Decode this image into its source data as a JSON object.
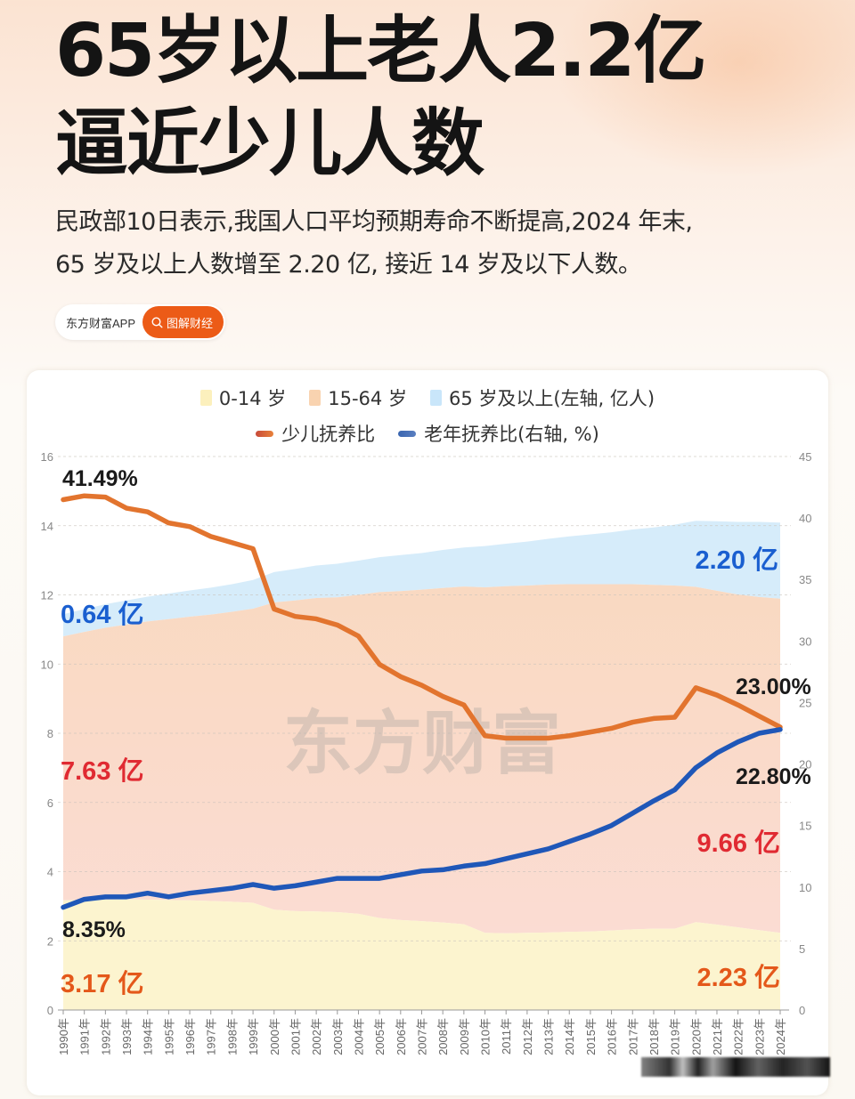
{
  "header": {
    "title_line1": "65岁以上老人2.2亿",
    "title_line2": "逼近少儿人数",
    "lede_line1": "民政部10日表示,我国人口平均预期寿命不断提高,2024 年末,",
    "lede_line2": "65 岁及以上人数增至 2.20 亿, 接近 14 岁及以下人数。",
    "badge_brand": "东方财富APP",
    "badge_pill": "图解财经",
    "badge_icon": "search-icon"
  },
  "colors": {
    "age_0_14": "#fcf4cf",
    "age_15_64": "#f9d9c3",
    "age_65_plus": "#d6ecfa",
    "youth_line": "#e2742e",
    "elderly_line": "#1f57b8",
    "accent_orange": "#ec5b17",
    "annotation_blue": "#1a5fd0",
    "annotation_red": "#e02a32",
    "annotation_orange": "#e4581a"
  },
  "legend": {
    "row1": [
      "0-14 岁",
      "15-64 岁",
      "65 岁及以上(左轴, 亿人)"
    ],
    "row2": [
      "少儿抚养比",
      "老年抚养比(右轴, %)"
    ]
  },
  "annotations": {
    "youth_ratio_start": "41.49%",
    "elderly_ratio_start": "8.35%",
    "youth_ratio_end": "23.00%",
    "elderly_ratio_end": "22.80%",
    "pop65_start": "0.64 亿",
    "pop65_end": "2.20 亿",
    "pop15_64_start": "7.63 亿",
    "pop15_64_end": "9.66 亿",
    "pop0_14_start": "3.17 亿",
    "pop0_14_end": "2.23 亿"
  },
  "watermark": "东方财富",
  "chart_data": {
    "type": "area+line",
    "title": "",
    "xlabel": "",
    "ylabel_left": "亿人",
    "ylabel_right": "%",
    "ylim_left": [
      0,
      16
    ],
    "ylim_right": [
      0,
      45
    ],
    "yticks_left": [
      0,
      2,
      4,
      6,
      8,
      10,
      12,
      14,
      16
    ],
    "yticks_right": [
      0,
      5,
      10,
      15,
      20,
      25,
      30,
      35,
      40,
      45
    ],
    "grid": true,
    "legend_position": "top",
    "categories": [
      "1990年",
      "1991年",
      "1992年",
      "1993年",
      "1994年",
      "1995年",
      "1996年",
      "1997年",
      "1998年",
      "1999年",
      "2000年",
      "2001年",
      "2002年",
      "2003年",
      "2004年",
      "2005年",
      "2006年",
      "2007年",
      "2008年",
      "2009年",
      "2010年",
      "2011年",
      "2012年",
      "2013年",
      "2014年",
      "2015年",
      "2016年",
      "2017年",
      "2018年",
      "2019年",
      "2020年",
      "2021年",
      "2022年",
      "2023年",
      "2024年"
    ],
    "series": [
      {
        "name": "0-14 岁",
        "axis": "left",
        "kind": "stacked-area",
        "values": [
          3.17,
          3.18,
          3.19,
          3.2,
          3.19,
          3.18,
          3.17,
          3.15,
          3.13,
          3.1,
          2.9,
          2.86,
          2.85,
          2.83,
          2.78,
          2.66,
          2.6,
          2.57,
          2.53,
          2.48,
          2.23,
          2.22,
          2.23,
          2.24,
          2.26,
          2.27,
          2.3,
          2.33,
          2.35,
          2.35,
          2.54,
          2.47,
          2.39,
          2.31,
          2.23
        ]
      },
      {
        "name": "15-64 岁",
        "axis": "left",
        "kind": "stacked-area",
        "values": [
          7.63,
          7.75,
          7.86,
          7.94,
          8.04,
          8.12,
          8.2,
          8.28,
          8.38,
          8.5,
          8.88,
          8.98,
          9.06,
          9.1,
          9.22,
          9.42,
          9.51,
          9.58,
          9.67,
          9.76,
          9.99,
          10.03,
          10.04,
          10.06,
          10.05,
          10.04,
          10.01,
          9.98,
          9.94,
          9.92,
          9.69,
          9.65,
          9.62,
          9.63,
          9.66
        ]
      },
      {
        "name": "65 岁及以上",
        "axis": "left",
        "kind": "stacked-area",
        "values": [
          0.64,
          0.66,
          0.68,
          0.7,
          0.72,
          0.74,
          0.76,
          0.78,
          0.8,
          0.83,
          0.88,
          0.91,
          0.94,
          0.97,
          0.99,
          1.01,
          1.04,
          1.06,
          1.1,
          1.13,
          1.19,
          1.23,
          1.27,
          1.32,
          1.38,
          1.44,
          1.5,
          1.58,
          1.66,
          1.76,
          1.91,
          2.01,
          2.1,
          2.17,
          2.2
        ]
      },
      {
        "name": "少儿抚养比",
        "axis": "right",
        "kind": "line",
        "values": [
          41.49,
          41.8,
          41.7,
          40.8,
          40.5,
          39.6,
          39.3,
          38.5,
          38.0,
          37.5,
          32.6,
          32.0,
          31.8,
          31.3,
          30.4,
          28.1,
          27.1,
          26.4,
          25.5,
          24.8,
          22.3,
          22.1,
          22.1,
          22.1,
          22.3,
          22.6,
          22.9,
          23.4,
          23.7,
          23.8,
          26.2,
          25.6,
          24.8,
          23.9,
          23.0
        ]
      },
      {
        "name": "老年抚养比",
        "axis": "right",
        "kind": "line",
        "values": [
          8.35,
          9.0,
          9.2,
          9.2,
          9.5,
          9.2,
          9.5,
          9.7,
          9.9,
          10.2,
          9.9,
          10.1,
          10.4,
          10.7,
          10.7,
          10.7,
          11.0,
          11.3,
          11.4,
          11.7,
          11.9,
          12.3,
          12.7,
          13.1,
          13.7,
          14.3,
          15.0,
          16.0,
          17.0,
          17.9,
          19.7,
          20.9,
          21.8,
          22.5,
          22.8
        ]
      }
    ]
  }
}
